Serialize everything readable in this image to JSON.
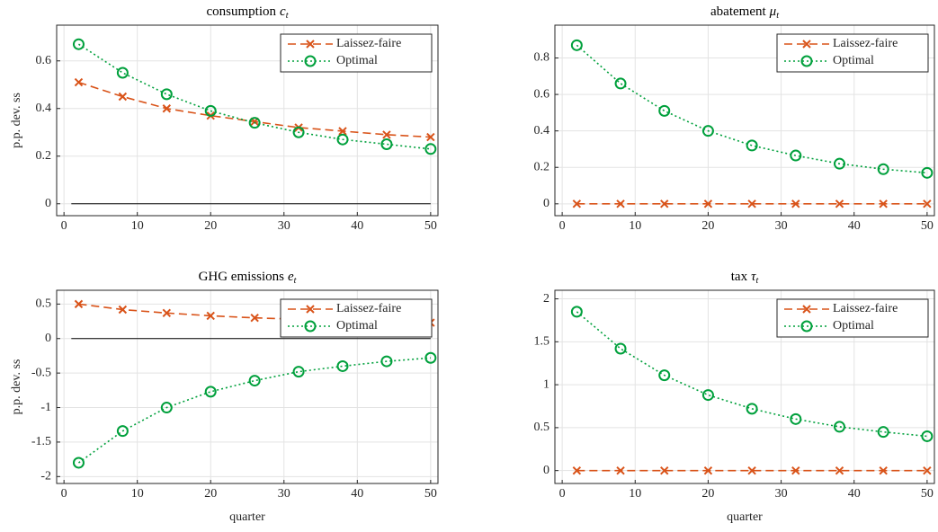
{
  "chart_data": [
    {
      "type": "line",
      "title": "consumption",
      "title_symbol": "c",
      "title_subscript": "t",
      "ylabel": "p.p. dev. ss",
      "x": [
        2,
        8,
        14,
        20,
        26,
        32,
        38,
        44,
        50
      ],
      "xlim": [
        -1,
        51
      ],
      "xticks": [
        0,
        10,
        20,
        30,
        40,
        50
      ],
      "ylim": [
        -0.05,
        0.75
      ],
      "yticks": [
        0,
        0.2,
        0.4,
        0.6
      ],
      "grid": true,
      "zero_line": true,
      "legend": "upper-right",
      "series": [
        {
          "name": "Laissez-faire",
          "color": "#d95319",
          "linestyle": "dashed",
          "marker": "x",
          "values": [
            0.51,
            0.45,
            0.4,
            0.37,
            0.345,
            0.32,
            0.305,
            0.29,
            0.28
          ]
        },
        {
          "name": "Optimal",
          "color": "#00a03c",
          "linestyle": "dotted",
          "marker": "o",
          "values": [
            0.67,
            0.55,
            0.46,
            0.39,
            0.34,
            0.3,
            0.27,
            0.25,
            0.23
          ]
        }
      ]
    },
    {
      "type": "line",
      "title": "abatement",
      "title_symbol": "μ",
      "title_subscript": "t",
      "x": [
        2,
        8,
        14,
        20,
        26,
        32,
        38,
        44,
        50
      ],
      "xlim": [
        -1,
        51
      ],
      "xticks": [
        0,
        10,
        20,
        30,
        40,
        50
      ],
      "ylim": [
        -0.065,
        0.98
      ],
      "yticks": [
        0,
        0.2,
        0.4,
        0.6,
        0.8
      ],
      "grid": true,
      "zero_line": false,
      "legend": "upper-right",
      "series": [
        {
          "name": "Laissez-faire",
          "color": "#d95319",
          "linestyle": "dashed",
          "marker": "x",
          "values": [
            0,
            0,
            0,
            0,
            0,
            0,
            0,
            0,
            0
          ]
        },
        {
          "name": "Optimal",
          "color": "#00a03c",
          "linestyle": "dotted",
          "marker": "o",
          "values": [
            0.87,
            0.66,
            0.51,
            0.4,
            0.32,
            0.265,
            0.22,
            0.19,
            0.17
          ]
        }
      ]
    },
    {
      "type": "line",
      "title": "GHG emissions",
      "title_symbol": "e",
      "title_subscript": "t",
      "ylabel": "p.p. dev. ss",
      "xlabel": "quarter",
      "x": [
        2,
        8,
        14,
        20,
        26,
        32,
        38,
        44,
        50
      ],
      "xlim": [
        -1,
        51
      ],
      "xticks": [
        0,
        10,
        20,
        30,
        40,
        50
      ],
      "ylim": [
        -2.1,
        0.7
      ],
      "yticks": [
        -2,
        -1.5,
        -1,
        -0.5,
        0,
        0.5
      ],
      "grid": true,
      "zero_line": true,
      "legend": "upper-right",
      "series": [
        {
          "name": "Laissez-faire",
          "color": "#d95319",
          "linestyle": "dashed",
          "marker": "x",
          "values": [
            0.5,
            0.42,
            0.37,
            0.33,
            0.3,
            0.28,
            0.26,
            0.245,
            0.23
          ]
        },
        {
          "name": "Optimal",
          "color": "#00a03c",
          "linestyle": "dotted",
          "marker": "o",
          "values": [
            -1.8,
            -1.34,
            -1.0,
            -0.77,
            -0.61,
            -0.48,
            -0.4,
            -0.33,
            -0.28
          ]
        }
      ]
    },
    {
      "type": "line",
      "title": "tax",
      "title_symbol": "τ",
      "title_subscript": "t",
      "xlabel": "quarter",
      "x": [
        2,
        8,
        14,
        20,
        26,
        32,
        38,
        44,
        50
      ],
      "xlim": [
        -1,
        51
      ],
      "xticks": [
        0,
        10,
        20,
        30,
        40,
        50
      ],
      "ylim": [
        -0.15,
        2.1
      ],
      "yticks": [
        0,
        0.5,
        1,
        1.5,
        2
      ],
      "grid": true,
      "zero_line": false,
      "legend": "upper-right",
      "series": [
        {
          "name": "Laissez-faire",
          "color": "#d95319",
          "linestyle": "dashed",
          "marker": "x",
          "values": [
            0,
            0,
            0,
            0,
            0,
            0,
            0,
            0,
            0
          ]
        },
        {
          "name": "Optimal",
          "color": "#00a03c",
          "linestyle": "dotted",
          "marker": "o",
          "values": [
            1.85,
            1.42,
            1.11,
            0.88,
            0.72,
            0.6,
            0.51,
            0.45,
            0.4
          ]
        }
      ]
    }
  ]
}
